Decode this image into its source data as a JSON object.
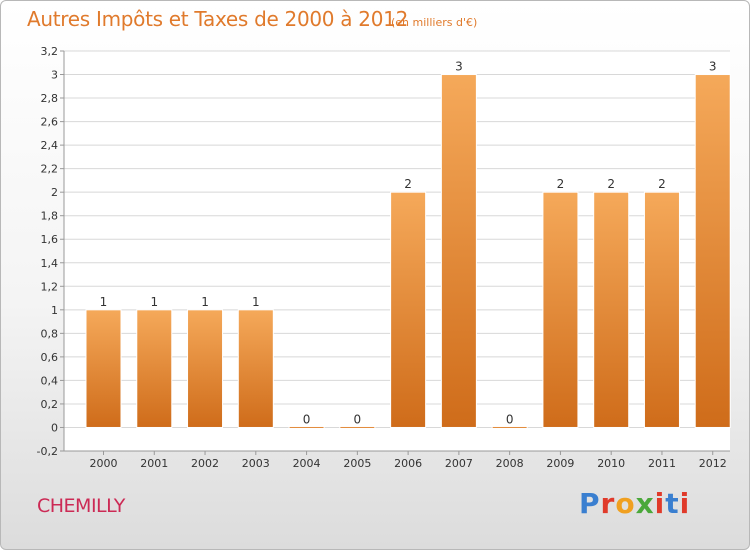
{
  "header": {
    "title": "Autres Impôts et Taxes de 2000 à 2012",
    "subtitle": "(en milliers d'€)"
  },
  "footer": {
    "commune": "CHEMILLY",
    "logo_text": "Proxiti",
    "logo_colors": [
      "#3a7fd0",
      "#e03a2a",
      "#f0a020",
      "#4aa83a",
      "#e03a2a",
      "#3a7fd0",
      "#e03a2a"
    ]
  },
  "chart_data": {
    "type": "bar",
    "categories": [
      "2000",
      "2001",
      "2002",
      "2003",
      "2004",
      "2005",
      "2006",
      "2007",
      "2008",
      "2009",
      "2010",
      "2011",
      "2012"
    ],
    "values": [
      1,
      1,
      1,
      1,
      0,
      0,
      2,
      3,
      0,
      2,
      2,
      2,
      3
    ],
    "data_labels": [
      "1",
      "1",
      "1",
      "1",
      "0",
      "0",
      "2",
      "3",
      "0",
      "2",
      "2",
      "2",
      "3"
    ],
    "ylim": [
      -0.2,
      3.2
    ],
    "yticks": [
      "-0,2",
      "0",
      "0,2",
      "0,4",
      "0,6",
      "0,8",
      "1",
      "1,2",
      "1,4",
      "1,6",
      "1,8",
      "2",
      "2,2",
      "2,4",
      "2,6",
      "2,8",
      "3",
      "3,2"
    ],
    "ytick_values": [
      -0.2,
      0,
      0.2,
      0.4,
      0.6,
      0.8,
      1,
      1.2,
      1.4,
      1.6,
      1.8,
      2,
      2.2,
      2.4,
      2.6,
      2.8,
      3,
      3.2
    ],
    "grid": true,
    "bar_color": "#ee9640"
  }
}
